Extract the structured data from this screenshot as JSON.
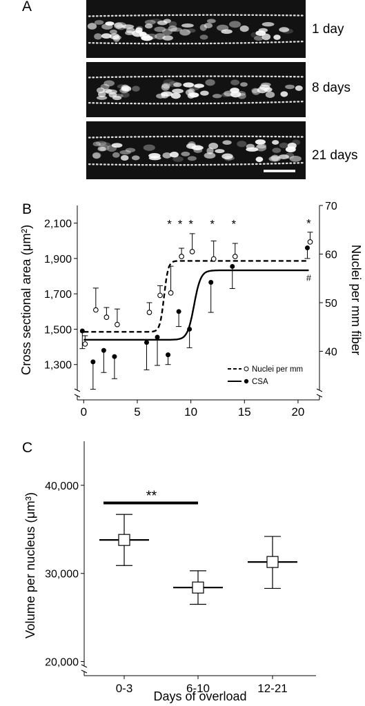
{
  "panelA": {
    "label": "A",
    "images": [
      {
        "day_label": "1 day"
      },
      {
        "day_label": "8 days"
      },
      {
        "day_label": "21 days"
      }
    ]
  },
  "chart_data": [
    {
      "type": "line",
      "panel_label": "B",
      "ylabel": "Cross sectional area (μm²)",
      "y2label": "Nuclei per mm fiber",
      "xlim": [
        -0.6,
        22
      ],
      "ylim": [
        1100,
        2200
      ],
      "y2lim": [
        30,
        70
      ],
      "xticks": [
        0,
        5,
        10,
        15,
        20
      ],
      "xtick_labels": [
        "0",
        "5",
        "10",
        "15",
        "20"
      ],
      "yticks": [
        1300,
        1500,
        1700,
        1900,
        2100
      ],
      "ytick_labels": [
        "1,300",
        "1,500",
        "1,700",
        "1,900",
        "2,100"
      ],
      "y2ticks": [
        40,
        50,
        60,
        70
      ],
      "y2tick_labels": [
        "40",
        "50",
        "60",
        "70"
      ],
      "legend_position": "lower-right",
      "series": [
        {
          "name": "Nuclei per mm",
          "marker": "open-circle",
          "axis": "right",
          "x": [
            0,
            1,
            2,
            3,
            6,
            7,
            8,
            9,
            10,
            12,
            14,
            21
          ],
          "y": [
            41.5,
            48.5,
            47.0,
            45.5,
            48.0,
            51.5,
            52.0,
            59.5,
            60.5,
            59.0,
            59.5,
            62.5
          ],
          "err_up": [
            1.7,
            4.5,
            2.0,
            3.2,
            2.0,
            2.0,
            5.5,
            1.7,
            3.7,
            3.7,
            2.7,
            2.0
          ]
        },
        {
          "name": "CSA",
          "marker": "filled-circle",
          "axis": "left",
          "x": [
            0,
            1,
            2,
            3,
            6,
            7,
            8,
            9,
            10,
            12,
            14,
            21
          ],
          "y": [
            1490,
            1315,
            1380,
            1345,
            1425,
            1455,
            1355,
            1600,
            1500,
            1765,
            1855,
            1960
          ],
          "err_down": [
            100,
            155,
            125,
            125,
            155,
            160,
            55,
            85,
            105,
            170,
            125,
            60
          ]
        }
      ],
      "fits": [
        {
          "name": "Nuclei per mm",
          "style": "dashed",
          "axis": "right",
          "bottom": 44,
          "top": 58.6,
          "x50": 7.5,
          "slope": 0.45
        },
        {
          "name": "CSA",
          "style": "solid",
          "axis": "left",
          "bottom": 1440,
          "top": 1833,
          "x50": 10.3,
          "slope": 0.28
        }
      ],
      "annotations": [
        {
          "text": "*",
          "x": 8,
          "y2": 66.5
        },
        {
          "text": "*",
          "x": 9,
          "y2": 66.5
        },
        {
          "text": "*",
          "x": 10,
          "y2": 66.5
        },
        {
          "text": "*",
          "x": 12,
          "y2": 66.5
        },
        {
          "text": "*",
          "x": 14,
          "y2": 66.5
        },
        {
          "text": "*",
          "x": 21,
          "y2": 66.7
        },
        {
          "text": "#",
          "x": 21,
          "y": 1805
        }
      ]
    },
    {
      "type": "scatter",
      "panel_label": "C",
      "xlabel": "Days of overload",
      "ylabel": "Volume per nucleus (μm³)",
      "categories": [
        "0-3",
        "6-10",
        "12-21"
      ],
      "values": [
        33800,
        28400,
        31300
      ],
      "err_low": [
        30900,
        26500,
        28300
      ],
      "err_high": [
        36700,
        30300,
        34200
      ],
      "ylim": [
        18400,
        45000
      ],
      "yticks": [
        20000,
        30000,
        40000
      ],
      "ytick_labels": [
        "20,000",
        "30,000",
        "40,000"
      ],
      "marker": "open-square",
      "significance": {
        "text": "**",
        "from": "0-3",
        "to": "6-10",
        "y": 38000
      }
    }
  ]
}
